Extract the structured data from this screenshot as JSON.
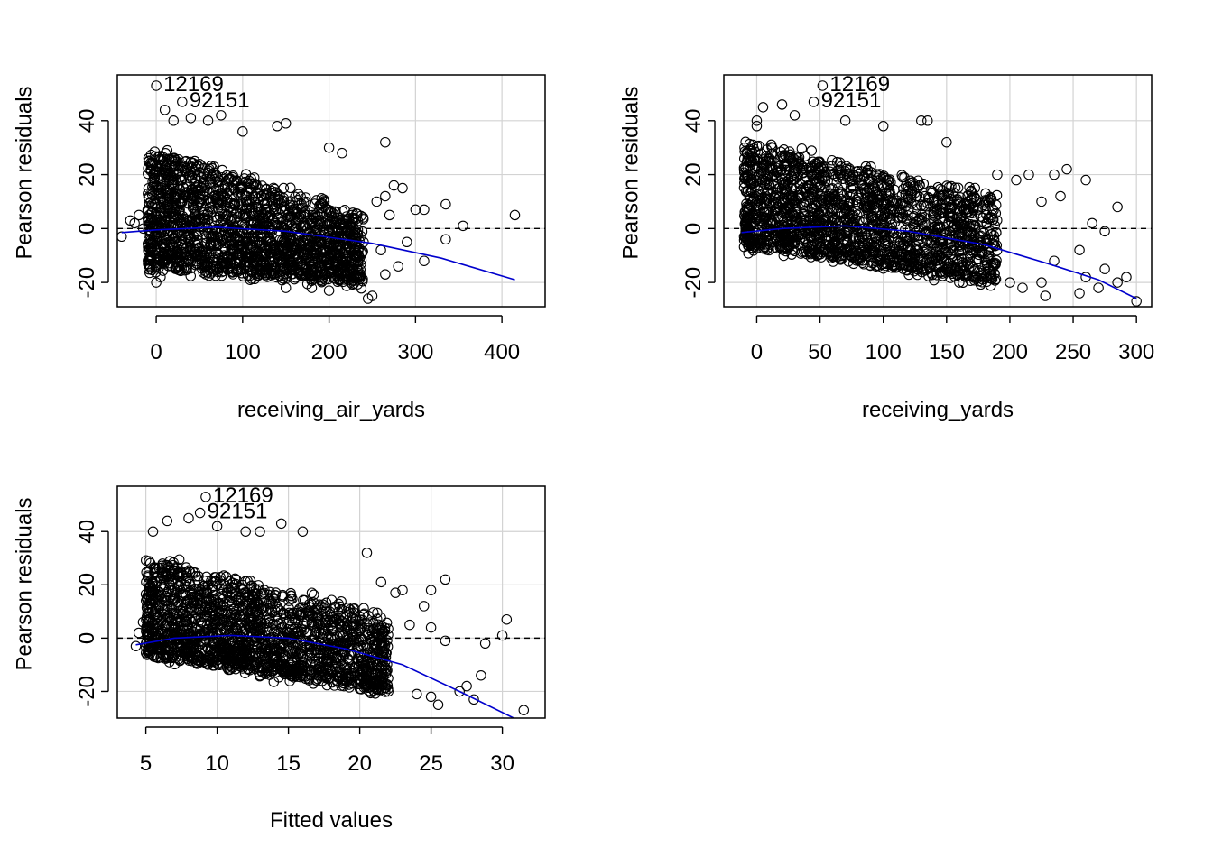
{
  "colors": {
    "points": "#000000",
    "grid": "#d3d3d3",
    "smooth_curve": "#0000cd",
    "zero_line": "#000000"
  },
  "chart_data": [
    {
      "type": "scatter",
      "subtype": "residual-plot",
      "xlabel": "receiving_air_yards",
      "ylabel": "Pearson residuals",
      "xlim": [
        -45,
        450
      ],
      "ylim": [
        -29,
        57
      ],
      "xticks": [
        0,
        100,
        200,
        300,
        400
      ],
      "yticks": [
        -20,
        0,
        20,
        40
      ],
      "grid": true,
      "reference_line": {
        "y": 0,
        "style": "dashed"
      },
      "cloud": {
        "x_range": [
          -10,
          240
        ],
        "resid_upper_at_x0": 30,
        "resid_upper_at_xmax": 5,
        "resid_lower_at_x0": -14,
        "resid_lower_at_xmax": -20
      },
      "smooth_curve": [
        [
          -40,
          -1.5
        ],
        [
          0,
          -0.5
        ],
        [
          70,
          0.5
        ],
        [
          150,
          -1.0
        ],
        [
          250,
          -5.5
        ],
        [
          330,
          -11
        ],
        [
          415,
          -19
        ]
      ],
      "points": [
        [
          0,
          53
        ],
        [
          30,
          47
        ],
        [
          10,
          44
        ],
        [
          20,
          40
        ],
        [
          40,
          41
        ],
        [
          60,
          40
        ],
        [
          75,
          42
        ],
        [
          100,
          36
        ],
        [
          140,
          38
        ],
        [
          150,
          39
        ],
        [
          200,
          30
        ],
        [
          215,
          28
        ],
        [
          265,
          32
        ],
        [
          255,
          10
        ],
        [
          265,
          12
        ],
        [
          275,
          16
        ],
        [
          285,
          15
        ],
        [
          270,
          5
        ],
        [
          300,
          7
        ],
        [
          310,
          7
        ],
        [
          335,
          9
        ],
        [
          355,
          1
        ],
        [
          415,
          5
        ],
        [
          335,
          -4
        ],
        [
          310,
          -12
        ],
        [
          280,
          -14
        ],
        [
          265,
          -17
        ],
        [
          250,
          -25
        ],
        [
          245,
          -26
        ],
        [
          150,
          -22
        ],
        [
          180,
          -22
        ],
        [
          200,
          -23
        ],
        [
          225,
          -20
        ],
        [
          -40,
          -3
        ],
        [
          -30,
          3
        ],
        [
          -25,
          2
        ],
        [
          -20,
          5
        ],
        [
          -15,
          0
        ],
        [
          0,
          -20
        ],
        [
          5,
          -18
        ],
        [
          230,
          -10
        ],
        [
          240,
          -5
        ],
        [
          260,
          -8
        ],
        [
          290,
          -5
        ]
      ],
      "labeled_points": [
        {
          "label": "12169",
          "x": 0,
          "y": 53
        },
        {
          "label": "92151",
          "x": 30,
          "y": 47
        }
      ]
    },
    {
      "type": "scatter",
      "subtype": "residual-plot",
      "xlabel": "receiving_yards",
      "ylabel": "Pearson residuals",
      "xlim": [
        -26,
        312
      ],
      "ylim": [
        -29,
        57
      ],
      "xticks": [
        0,
        50,
        100,
        150,
        200,
        250,
        300
      ],
      "yticks": [
        -20,
        0,
        20,
        40
      ],
      "grid": true,
      "reference_line": {
        "y": 0,
        "style": "dashed"
      },
      "cloud": {
        "x_range": [
          -10,
          190
        ],
        "resid_upper_at_x0": 32,
        "resid_upper_at_xmax": 12,
        "resid_lower_at_x0": -6,
        "resid_lower_at_xmax": -20
      },
      "smooth_curve": [
        [
          -12,
          -1.5
        ],
        [
          20,
          0
        ],
        [
          70,
          1.0
        ],
        [
          120,
          -1.0
        ],
        [
          180,
          -6
        ],
        [
          230,
          -13
        ],
        [
          270,
          -19
        ],
        [
          300,
          -26
        ]
      ],
      "points": [
        [
          52,
          53
        ],
        [
          45,
          47
        ],
        [
          0,
          40
        ],
        [
          0,
          38
        ],
        [
          5,
          45
        ],
        [
          20,
          46
        ],
        [
          30,
          42
        ],
        [
          70,
          40
        ],
        [
          100,
          38
        ],
        [
          130,
          40
        ],
        [
          135,
          40
        ],
        [
          150,
          32
        ],
        [
          190,
          20
        ],
        [
          205,
          18
        ],
        [
          215,
          20
        ],
        [
          225,
          10
        ],
        [
          235,
          20
        ],
        [
          240,
          12
        ],
        [
          245,
          22
        ],
        [
          260,
          18
        ],
        [
          265,
          2
        ],
        [
          275,
          -1
        ],
        [
          285,
          8
        ],
        [
          255,
          -8
        ],
        [
          235,
          -12
        ],
        [
          225,
          -20
        ],
        [
          228,
          -25
        ],
        [
          200,
          -20
        ],
        [
          210,
          -22
        ],
        [
          180,
          -18
        ],
        [
          160,
          -20
        ],
        [
          255,
          -24
        ],
        [
          260,
          -18
        ],
        [
          270,
          -22
        ],
        [
          275,
          -15
        ],
        [
          285,
          -20
        ],
        [
          292,
          -18
        ],
        [
          300,
          -27
        ],
        [
          -10,
          -3
        ],
        [
          -8,
          2
        ],
        [
          -5,
          5
        ]
      ],
      "labeled_points": [
        {
          "label": "12169",
          "x": 52,
          "y": 53
        },
        {
          "label": "92151",
          "x": 45,
          "y": 47
        }
      ]
    },
    {
      "type": "scatter",
      "subtype": "residual-plot",
      "xlabel": "Fitted values",
      "ylabel": "Pearson residuals",
      "xlim": [
        3.0,
        33.0
      ],
      "ylim": [
        -30,
        57
      ],
      "xticks": [
        5,
        10,
        15,
        20,
        25,
        30
      ],
      "yticks": [
        -20,
        0,
        20,
        40
      ],
      "grid": true,
      "reference_line": {
        "y": 0,
        "style": "dashed"
      },
      "cloud": {
        "x_range": [
          5,
          22
        ],
        "resid_upper_at_x0": 30,
        "resid_upper_at_xmax": 8,
        "resid_lower_at_x0": -6,
        "resid_lower_at_xmax": -20
      },
      "smooth_curve": [
        [
          4.3,
          -2.5
        ],
        [
          7,
          0
        ],
        [
          11,
          1.0
        ],
        [
          15,
          0
        ],
        [
          19,
          -4
        ],
        [
          23,
          -10
        ],
        [
          27,
          -20
        ],
        [
          30.8,
          -30
        ]
      ],
      "points": [
        [
          9.2,
          53
        ],
        [
          8.8,
          47
        ],
        [
          5.5,
          40
        ],
        [
          6.5,
          44
        ],
        [
          8.0,
          45
        ],
        [
          10,
          42
        ],
        [
          12,
          40
        ],
        [
          13,
          40
        ],
        [
          14.5,
          43
        ],
        [
          16,
          40
        ],
        [
          20.5,
          32
        ],
        [
          21.5,
          21
        ],
        [
          22.5,
          17
        ],
        [
          23,
          18
        ],
        [
          25,
          18
        ],
        [
          26,
          22
        ],
        [
          24.5,
          12
        ],
        [
          23.5,
          5
        ],
        [
          25,
          4
        ],
        [
          26,
          -1
        ],
        [
          28.8,
          -2
        ],
        [
          30,
          1
        ],
        [
          30.3,
          7
        ],
        [
          28.5,
          -14
        ],
        [
          27.5,
          -18
        ],
        [
          27,
          -20
        ],
        [
          28,
          -23
        ],
        [
          25.5,
          -25
        ],
        [
          25,
          -22
        ],
        [
          24,
          -21
        ],
        [
          22,
          -20
        ],
        [
          20,
          -19
        ],
        [
          31.5,
          -27
        ],
        [
          4.3,
          -3
        ],
        [
          4.5,
          2
        ],
        [
          4.8,
          6
        ]
      ],
      "labeled_points": [
        {
          "label": "12169",
          "x": 9.2,
          "y": 53
        },
        {
          "label": "92151",
          "x": 8.8,
          "y": 47
        }
      ]
    }
  ]
}
